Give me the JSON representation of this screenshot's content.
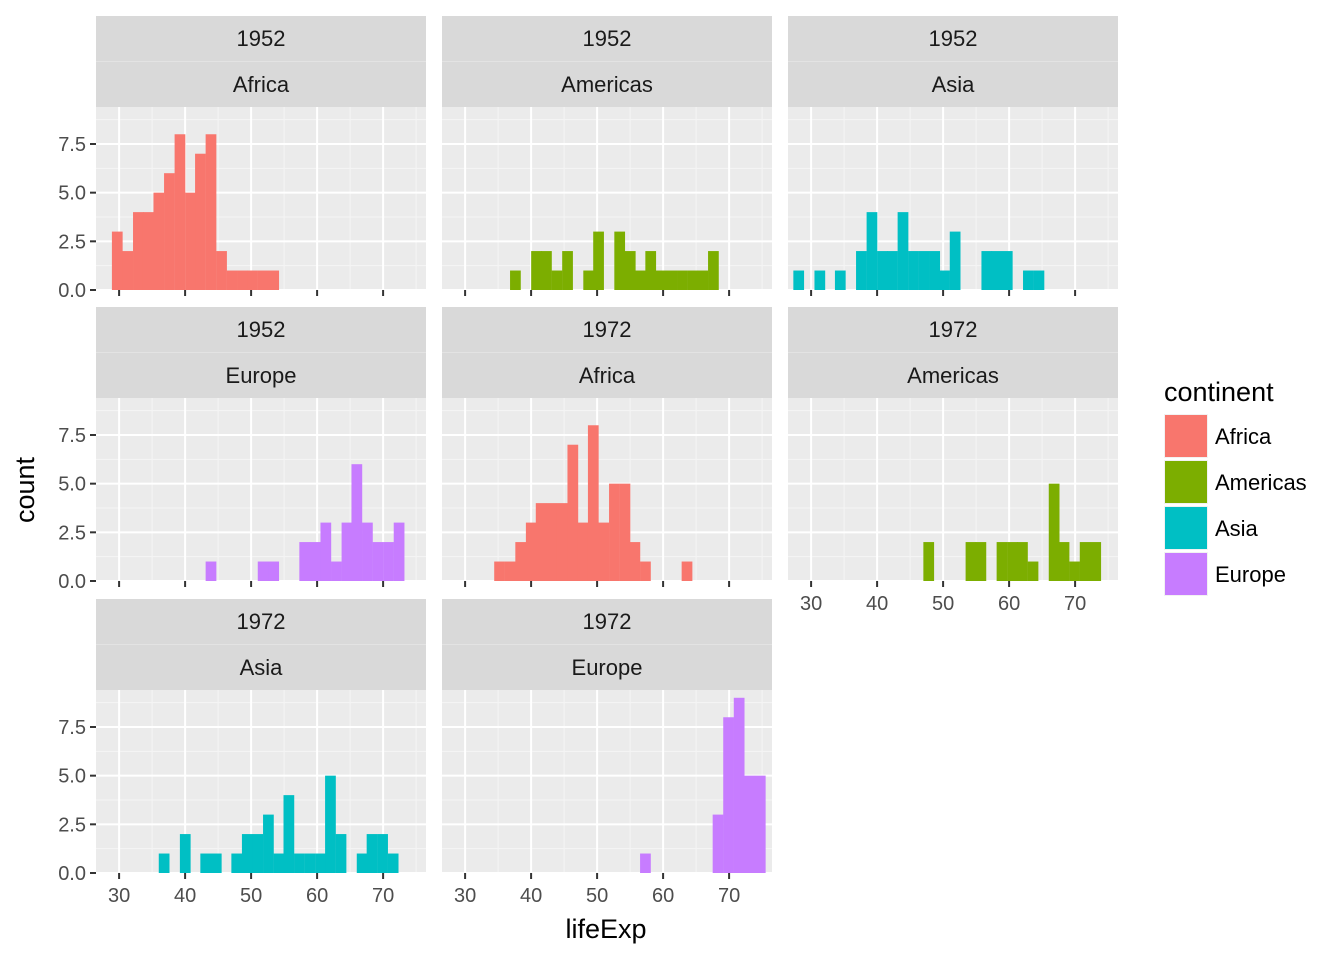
{
  "chart_data": {
    "type": "bar",
    "subtype": "faceted-histogram",
    "xlabel": "lifeExp",
    "ylabel": "count",
    "xlim": [
      26.5,
      76.5
    ],
    "ylim": [
      0,
      9.4
    ],
    "x_ticks": [
      30,
      40,
      50,
      60,
      70
    ],
    "y_ticks": [
      0,
      2.5,
      5,
      7.5
    ],
    "y_tick_labels": [
      "0.0",
      "2.5",
      "5.0",
      "7.5"
    ],
    "bin_width": 1.58,
    "grid": true,
    "legend": {
      "title": "continent",
      "position": "right",
      "entries": [
        {
          "label": "Africa",
          "color": "#F8766D"
        },
        {
          "label": "Americas",
          "color": "#7CAE00"
        },
        {
          "label": "Asia",
          "color": "#00BFC4"
        },
        {
          "label": "Europe",
          "color": "#C77CFF"
        }
      ]
    },
    "facets": [
      {
        "year": "1952",
        "continent": "Africa",
        "color": "#F8766D",
        "bins": [
          [
            29.7,
            3
          ],
          [
            31.3,
            2
          ],
          [
            32.9,
            4
          ],
          [
            34.4,
            4
          ],
          [
            36.0,
            5
          ],
          [
            37.6,
            6
          ],
          [
            39.2,
            8
          ],
          [
            40.8,
            5
          ],
          [
            42.3,
            7
          ],
          [
            43.9,
            8
          ],
          [
            45.5,
            2
          ],
          [
            47.1,
            1
          ],
          [
            48.7,
            1
          ],
          [
            50.2,
            1
          ],
          [
            51.8,
            1
          ],
          [
            53.4,
            1
          ]
        ]
      },
      {
        "year": "1952",
        "continent": "Americas",
        "color": "#7CAE00",
        "bins": [
          [
            37.6,
            1
          ],
          [
            40.8,
            2
          ],
          [
            42.3,
            2
          ],
          [
            43.9,
            1
          ],
          [
            45.5,
            2
          ],
          [
            48.7,
            1
          ],
          [
            50.2,
            3
          ],
          [
            53.4,
            3
          ],
          [
            55.0,
            2
          ],
          [
            56.6,
            1
          ],
          [
            58.1,
            2
          ],
          [
            59.7,
            1
          ],
          [
            61.3,
            1
          ],
          [
            62.9,
            1
          ],
          [
            64.5,
            1
          ],
          [
            66.0,
            1
          ],
          [
            67.6,
            2
          ]
        ]
      },
      {
        "year": "1952",
        "continent": "Asia",
        "color": "#00BFC4",
        "bins": [
          [
            28.1,
            1
          ],
          [
            31.3,
            1
          ],
          [
            34.4,
            1
          ],
          [
            37.6,
            2
          ],
          [
            39.2,
            4
          ],
          [
            40.8,
            2
          ],
          [
            42.3,
            2
          ],
          [
            43.9,
            4
          ],
          [
            45.5,
            2
          ],
          [
            47.1,
            2
          ],
          [
            48.7,
            2
          ],
          [
            50.2,
            1
          ],
          [
            51.8,
            3
          ],
          [
            56.6,
            2
          ],
          [
            58.1,
            2
          ],
          [
            59.7,
            2
          ],
          [
            62.9,
            1
          ],
          [
            64.5,
            1
          ]
        ]
      },
      {
        "year": "1952",
        "continent": "Europe",
        "color": "#C77CFF",
        "bins": [
          [
            43.9,
            1
          ],
          [
            51.8,
            1
          ],
          [
            53.4,
            1
          ],
          [
            58.1,
            2
          ],
          [
            59.7,
            2
          ],
          [
            61.3,
            3
          ],
          [
            62.9,
            1
          ],
          [
            64.5,
            3
          ],
          [
            66.0,
            6
          ],
          [
            67.6,
            3
          ],
          [
            69.2,
            2
          ],
          [
            70.8,
            2
          ],
          [
            72.4,
            3
          ]
        ]
      },
      {
        "year": "1972",
        "continent": "Africa",
        "color": "#F8766D",
        "bins": [
          [
            35.2,
            1
          ],
          [
            36.8,
            1
          ],
          [
            38.4,
            2
          ],
          [
            40.0,
            3
          ],
          [
            41.5,
            4
          ],
          [
            43.1,
            4
          ],
          [
            44.7,
            4
          ],
          [
            46.3,
            7
          ],
          [
            47.8,
            3
          ],
          [
            49.4,
            8
          ],
          [
            51.0,
            3
          ],
          [
            52.6,
            5
          ],
          [
            54.2,
            5
          ],
          [
            55.7,
            2
          ],
          [
            57.3,
            1
          ],
          [
            63.6,
            1
          ]
        ]
      },
      {
        "year": "1972",
        "continent": "Americas",
        "color": "#7CAE00",
        "bins": [
          [
            47.8,
            2
          ],
          [
            54.2,
            2
          ],
          [
            55.7,
            2
          ],
          [
            58.9,
            2
          ],
          [
            60.5,
            2
          ],
          [
            62.0,
            2
          ],
          [
            63.6,
            1
          ],
          [
            66.8,
            5
          ],
          [
            68.3,
            2
          ],
          [
            69.9,
            1
          ],
          [
            71.5,
            2
          ],
          [
            73.1,
            2
          ]
        ]
      },
      {
        "year": "1972",
        "continent": "Asia",
        "color": "#00BFC4",
        "bins": [
          [
            36.8,
            1
          ],
          [
            40.0,
            2
          ],
          [
            43.1,
            1
          ],
          [
            44.7,
            1
          ],
          [
            47.8,
            1
          ],
          [
            49.4,
            2
          ],
          [
            51.0,
            2
          ],
          [
            52.6,
            3
          ],
          [
            54.2,
            1
          ],
          [
            55.7,
            4
          ],
          [
            57.3,
            1
          ],
          [
            58.9,
            1
          ],
          [
            60.5,
            1
          ],
          [
            62.0,
            5
          ],
          [
            63.6,
            2
          ],
          [
            66.8,
            1
          ],
          [
            68.3,
            2
          ],
          [
            69.9,
            2
          ],
          [
            71.5,
            1
          ]
        ]
      },
      {
        "year": "1972",
        "continent": "Europe",
        "color": "#C77CFF",
        "bins": [
          [
            57.3,
            1
          ],
          [
            68.3,
            3
          ],
          [
            69.9,
            8
          ],
          [
            71.5,
            9
          ],
          [
            73.1,
            5
          ],
          [
            74.7,
            5
          ]
        ]
      }
    ]
  }
}
